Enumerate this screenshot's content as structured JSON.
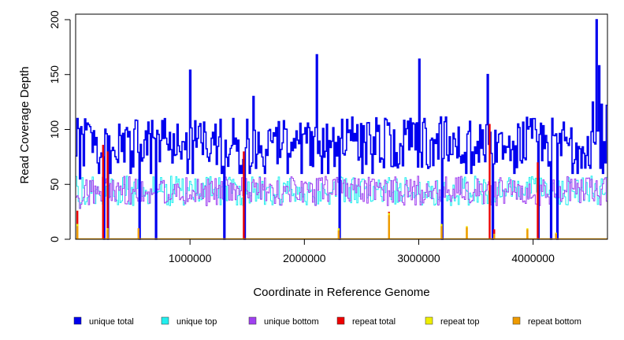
{
  "chart_data": {
    "type": "line",
    "title": "",
    "xlabel": "Coordinate in Reference Genome",
    "ylabel": "Read Coverage Depth",
    "xlim": [
      0,
      4650000
    ],
    "ylim": [
      0,
      205
    ],
    "x_ticks": [
      {
        "value": 1000000,
        "label": "1000000"
      },
      {
        "value": 2000000,
        "label": "2000000"
      },
      {
        "value": 3000000,
        "label": "3000000"
      },
      {
        "value": 4000000,
        "label": "4000000"
      }
    ],
    "y_ticks": [
      {
        "value": 0,
        "label": "0"
      },
      {
        "value": 50,
        "label": "50"
      },
      {
        "value": 100,
        "label": "100"
      },
      {
        "value": 150,
        "label": "150"
      },
      {
        "value": 200,
        "label": "200"
      }
    ],
    "grid": false,
    "legend_position": "bottom",
    "series": [
      {
        "name": "unique total",
        "color": "#0000ee",
        "approx_mean": 88,
        "approx_range": [
          65,
          112
        ],
        "spikes": [
          [
            1000000,
            154
          ],
          [
            2100000,
            168
          ],
          [
            3000000,
            164
          ],
          [
            3600000,
            150
          ],
          [
            1550000,
            130
          ],
          [
            4520000,
            125
          ],
          [
            4550000,
            200
          ],
          [
            4570000,
            158
          ],
          [
            4600000,
            123
          ],
          [
            4640000,
            122
          ]
        ],
        "drops": [
          [
            30000,
            55
          ],
          [
            240000,
            0
          ],
          [
            280000,
            0
          ],
          [
            550000,
            0
          ],
          [
            700000,
            0
          ],
          [
            1300000,
            0
          ],
          [
            1470000,
            0
          ],
          [
            2300000,
            0
          ],
          [
            3200000,
            0
          ],
          [
            3640000,
            0
          ],
          [
            4040000,
            0
          ],
          [
            4150000,
            0
          ],
          [
            4210000,
            0
          ]
        ]
      },
      {
        "name": "unique top",
        "color": "#22eeee",
        "approx_mean": 44,
        "approx_range": [
          30,
          60
        ]
      },
      {
        "name": "unique bottom",
        "color": "#a040f0",
        "approx_mean": 44,
        "approx_range": [
          30,
          60
        ]
      },
      {
        "name": "repeat total",
        "color": "#ee0000",
        "spikes": [
          [
            15000,
            26
          ],
          [
            240000,
            86
          ],
          [
            280000,
            80
          ],
          [
            1470000,
            80
          ],
          [
            2740000,
            25
          ],
          [
            3620000,
            105
          ],
          [
            3660000,
            9
          ],
          [
            4040000,
            70
          ]
        ]
      },
      {
        "name": "repeat top",
        "color": "#eeee00",
        "spikes": [
          [
            15000,
            14
          ],
          [
            280000,
            10
          ],
          [
            2300000,
            10
          ],
          [
            2740000,
            24
          ],
          [
            3200000,
            14
          ],
          [
            3420000,
            12
          ],
          [
            3950000,
            10
          ],
          [
            4200000,
            6
          ]
        ]
      },
      {
        "name": "repeat bottom",
        "color": "#ee9a00",
        "spikes": [
          [
            15000,
            12
          ],
          [
            280000,
            9
          ],
          [
            550000,
            10
          ],
          [
            2300000,
            8
          ],
          [
            2740000,
            22
          ],
          [
            3200000,
            12
          ],
          [
            3420000,
            11
          ],
          [
            3660000,
            5
          ],
          [
            3950000,
            9
          ],
          [
            4200000,
            5
          ]
        ]
      }
    ]
  }
}
